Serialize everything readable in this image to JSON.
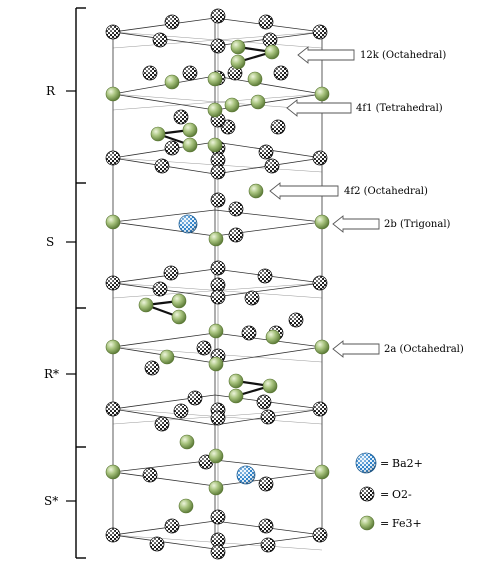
{
  "colors": {
    "fe_light": "#d6e6b6",
    "fe_mid": "#9cba74",
    "fe_dark": "#62813c",
    "ba_blue": "#2a7fc8",
    "ba_light": "#e4f1fb",
    "o_black": "#111111",
    "o_white": "#ffffff"
  },
  "blocks": [
    {
      "label": "R"
    },
    {
      "label": "S"
    },
    {
      "label": "R*"
    },
    {
      "label": "S*"
    }
  ],
  "sites": [
    {
      "label": "12k (Octahedral)"
    },
    {
      "label": "4f1 (Tetrahedral)"
    },
    {
      "label": "4f2 (Octahedral)"
    },
    {
      "label": "2b (Trigonal)"
    },
    {
      "label": "2a (Octahedral)"
    }
  ],
  "legend": [
    {
      "symbol": "Ba2+",
      "species": "ba",
      "icon": "barium-ion-icon"
    },
    {
      "symbol": "O2-",
      "species": "o",
      "icon": "oxygen-ion-icon"
    },
    {
      "symbol": "Fe3+",
      "species": "fe",
      "icon": "iron-ion-icon"
    }
  ],
  "legend_equals": "="
}
